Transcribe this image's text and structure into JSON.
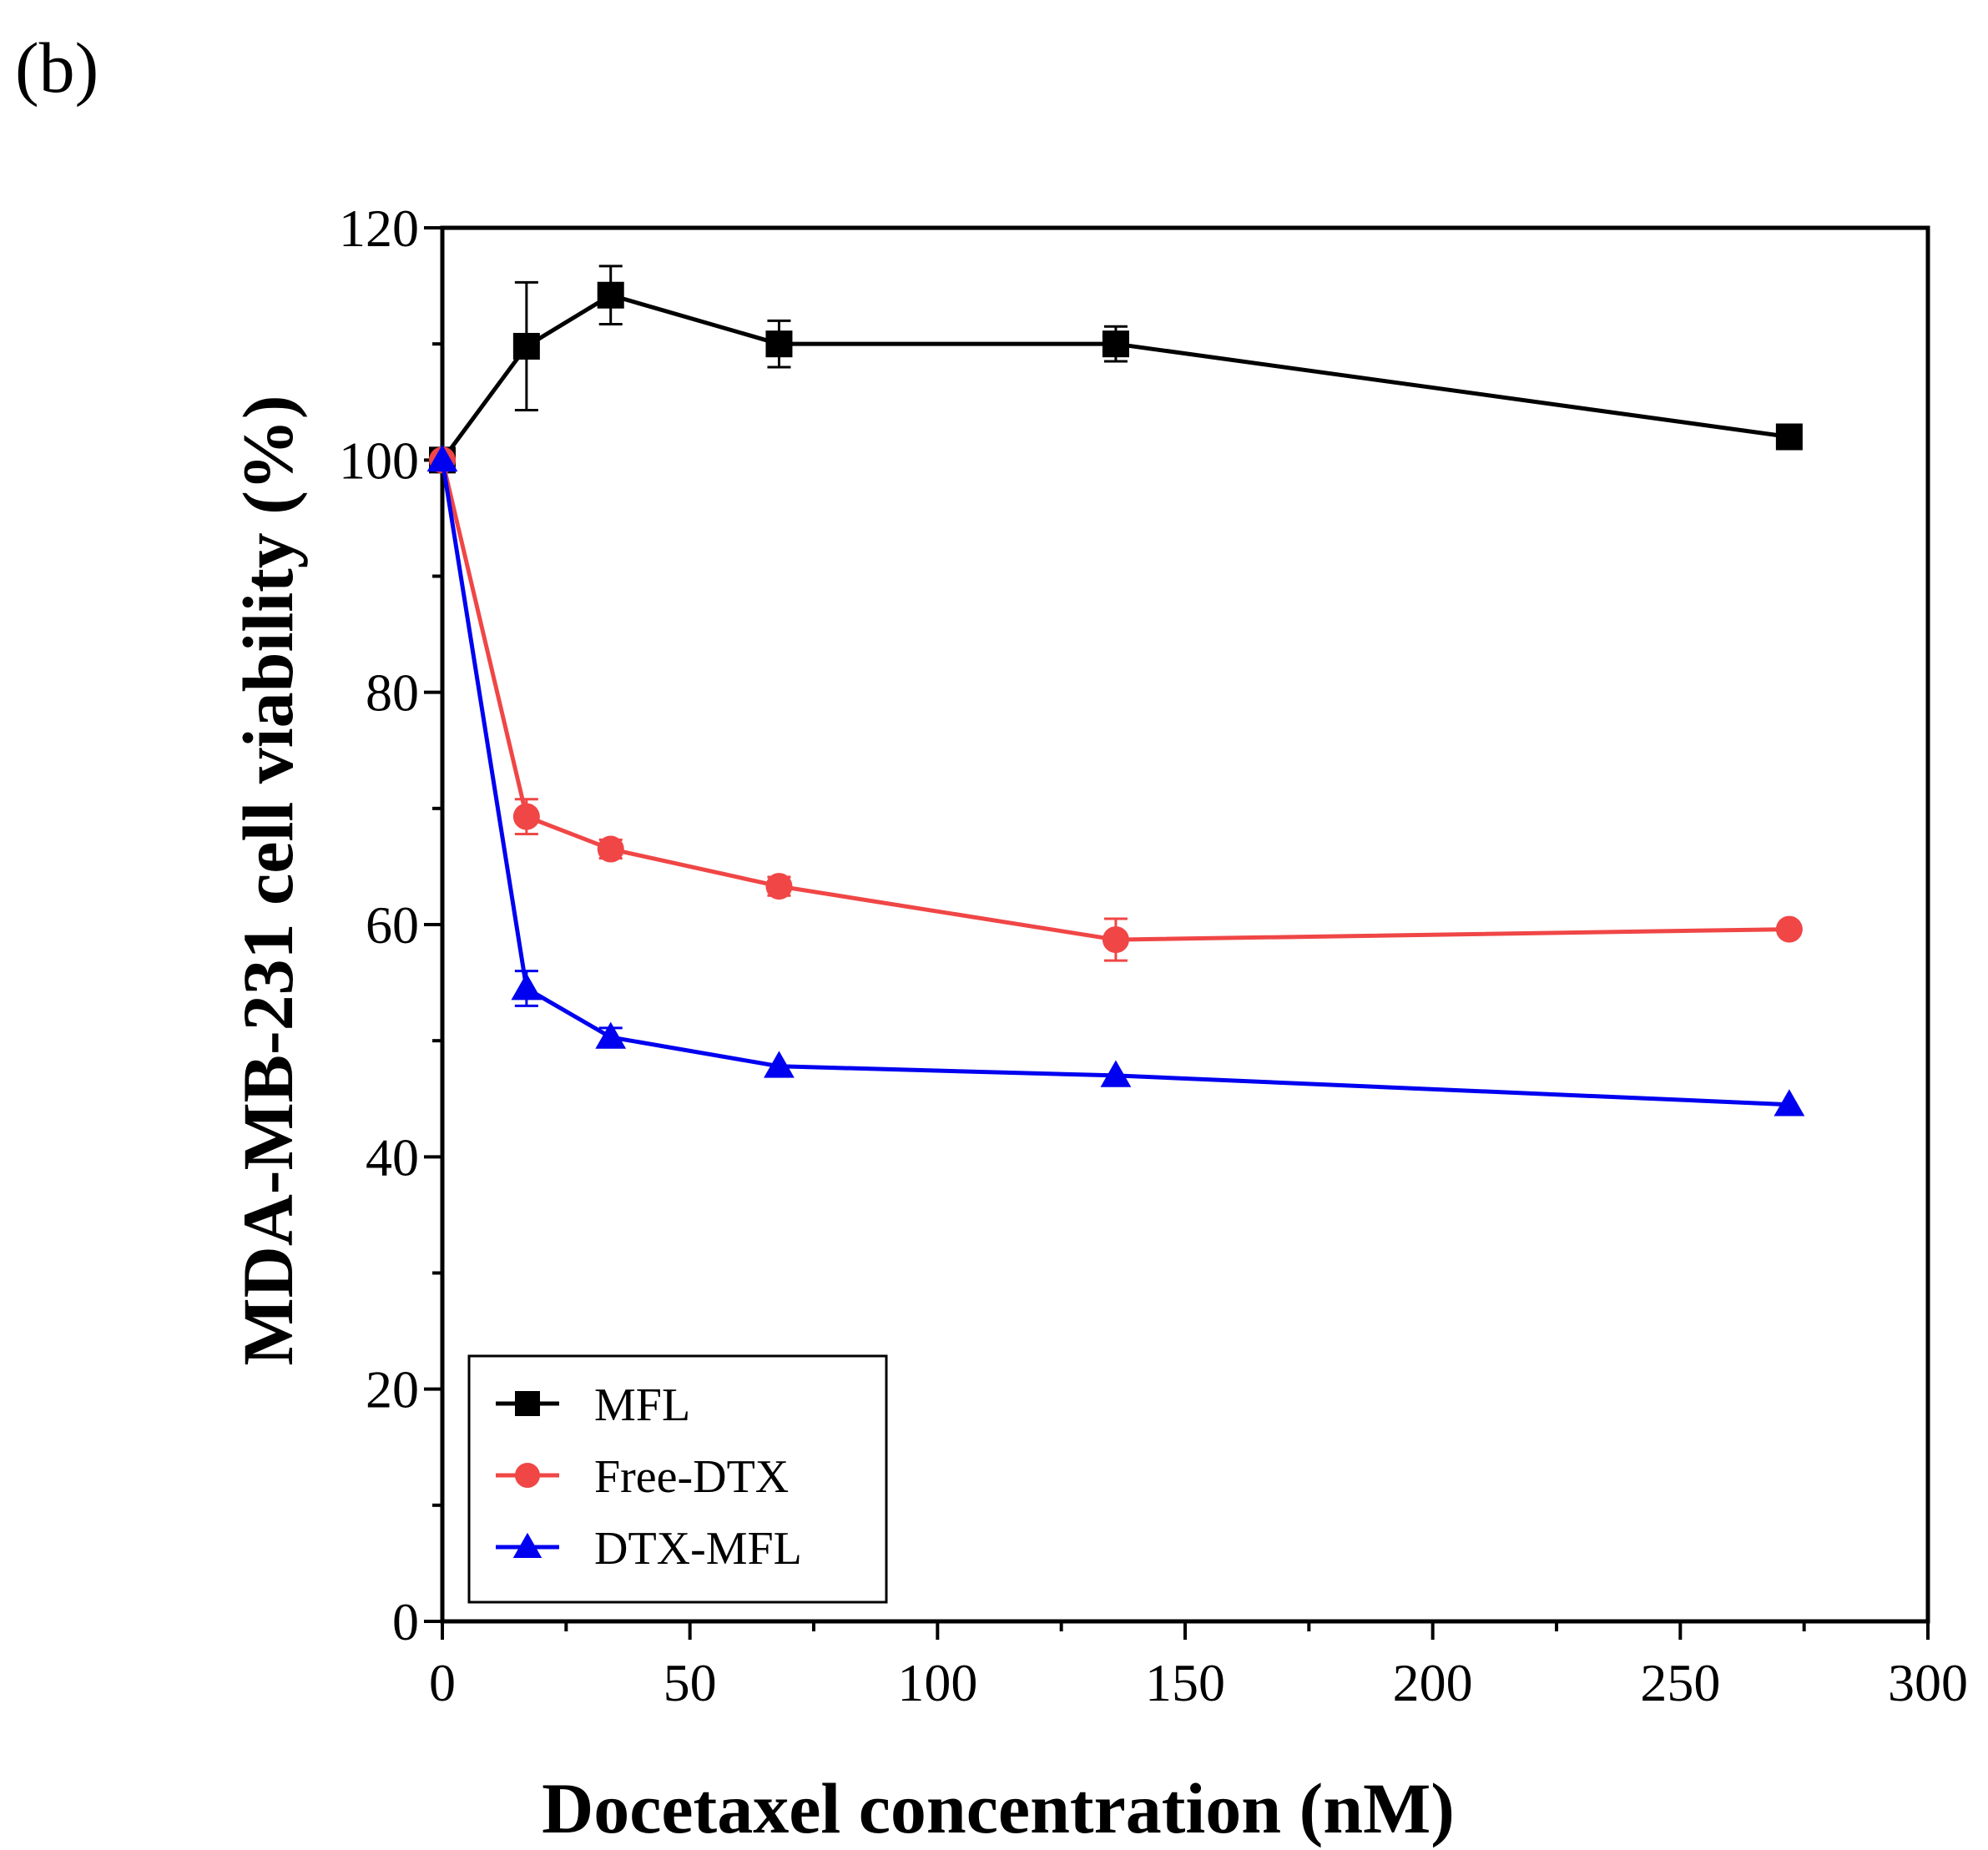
{
  "panel_label": "(b)",
  "colors": {
    "mfl": "#000000",
    "free_dtx": "#f04646",
    "dtx_mfl": "#0000f0",
    "axis": "#000000"
  },
  "chart_data": {
    "type": "line",
    "title": "",
    "xlabel": "Docetaxel concentration (nM)",
    "ylabel": "MDA-MB-231 cell viability (%)",
    "xlim": [
      0,
      300
    ],
    "ylim": [
      0,
      120
    ],
    "x_major_ticks": [
      0,
      50,
      100,
      150,
      200,
      250,
      300
    ],
    "y_major_ticks": [
      0,
      20,
      40,
      60,
      80,
      100,
      120
    ],
    "x_minor_ticks": [
      25,
      75,
      125,
      175,
      225,
      275
    ],
    "y_minor_ticks": [
      10,
      30,
      50,
      70,
      90,
      110
    ],
    "x_tick_labels": [
      "0",
      "50",
      "100",
      "150",
      "200",
      "250",
      "300"
    ],
    "y_tick_labels": [
      "0",
      "20",
      "40",
      "60",
      "80",
      "100",
      "120"
    ],
    "grid": false,
    "legend_position": "bottom-left",
    "x": [
      0,
      17,
      34,
      68,
      136,
      272
    ],
    "series": [
      {
        "name": "MFL",
        "color_key": "mfl",
        "marker": "square",
        "values": [
          100,
          109.8,
          114.2,
          110,
          110,
          102
        ],
        "errors": [
          0.5,
          5.5,
          2.5,
          2.0,
          1.5,
          0.8
        ]
      },
      {
        "name": "Free-DTX",
        "color_key": "free_dtx",
        "marker": "circle",
        "values": [
          100,
          69.3,
          66.5,
          63.3,
          58.7,
          59.6
        ],
        "errors": [
          0.5,
          1.5,
          0.8,
          0.8,
          1.8,
          0.6
        ]
      },
      {
        "name": "DTX-MFL",
        "color_key": "dtx_mfl",
        "marker": "triangle",
        "values": [
          100,
          54.5,
          50.3,
          47.8,
          47.0,
          44.5
        ],
        "errors": [
          0.5,
          1.5,
          0.8,
          0.5,
          0.5,
          0.5
        ]
      }
    ]
  }
}
